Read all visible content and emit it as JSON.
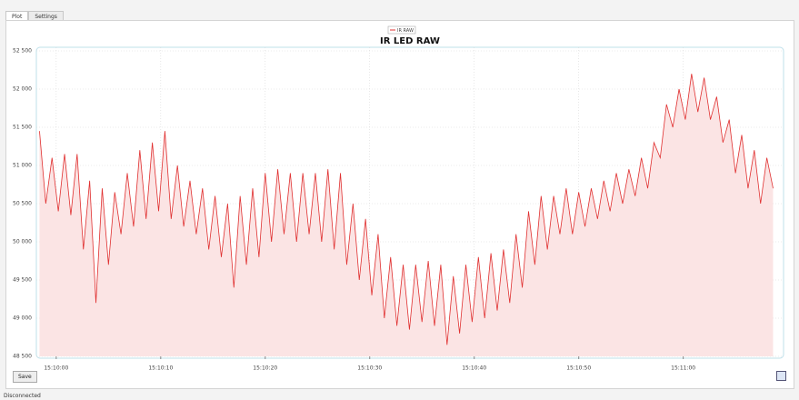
{
  "tabs": [
    "Plot",
    "Settings"
  ],
  "save_button": "Save",
  "status": "Disconnected",
  "chart_data": {
    "type": "line",
    "title": "IR LED RAW",
    "x": [
      "15:09:58.4",
      "15:09:59.0",
      "15:09:59.6",
      "15:10:00.2",
      "15:10:00.8",
      "15:10:01.4",
      "15:10:02.0",
      "15:10:02.6",
      "15:10:03.2",
      "15:10:03.8",
      "15:10:04.4",
      "15:10:05.0",
      "15:10:05.6",
      "15:10:06.2",
      "15:10:06.8",
      "15:10:07.4",
      "15:10:08.0",
      "15:10:08.6",
      "15:10:09.2",
      "15:10:09.8",
      "15:10:10.4",
      "15:10:11.0",
      "15:10:11.6",
      "15:10:12.2",
      "15:10:12.8",
      "15:10:13.4",
      "15:10:14.0",
      "15:10:14.6",
      "15:10:15.2",
      "15:10:15.8",
      "15:10:16.4",
      "15:10:17.0",
      "15:10:17.6",
      "15:10:18.2",
      "15:10:18.8",
      "15:10:19.4",
      "15:10:20.0",
      "15:10:20.6",
      "15:10:21.2",
      "15:10:21.8",
      "15:10:22.4",
      "15:10:23.0",
      "15:10:23.6",
      "15:10:24.2",
      "15:10:24.8",
      "15:10:25.4",
      "15:10:26.0",
      "15:10:26.6",
      "15:10:27.2",
      "15:10:27.8",
      "15:10:28.4",
      "15:10:29.0",
      "15:10:29.6",
      "15:10:30.2",
      "15:10:30.8",
      "15:10:31.4",
      "15:10:32.0",
      "15:10:32.6",
      "15:10:33.2",
      "15:10:33.8",
      "15:10:34.4",
      "15:10:35.0",
      "15:10:35.6",
      "15:10:36.2",
      "15:10:36.8",
      "15:10:37.4",
      "15:10:38.0",
      "15:10:38.6",
      "15:10:39.2",
      "15:10:39.8",
      "15:10:40.4",
      "15:10:41.0",
      "15:10:41.6",
      "15:10:42.2",
      "15:10:42.8",
      "15:10:43.4",
      "15:10:44.0",
      "15:10:44.6",
      "15:10:45.2",
      "15:10:45.8",
      "15:10:46.4",
      "15:10:47.0",
      "15:10:47.6",
      "15:10:48.2",
      "15:10:48.8",
      "15:10:49.4",
      "15:10:50.0",
      "15:10:50.6",
      "15:10:51.2",
      "15:10:51.8",
      "15:10:52.4",
      "15:10:53.0",
      "15:10:53.6",
      "15:10:54.2",
      "15:10:54.8",
      "15:10:55.4",
      "15:10:56.0",
      "15:10:56.6",
      "15:10:57.2",
      "15:10:57.8",
      "15:10:58.4",
      "15:10:59.0",
      "15:10:59.6",
      "15:11:00.2",
      "15:11:00.8",
      "15:11:01.4",
      "15:11:02.0",
      "15:11:02.6",
      "15:11:03.2",
      "15:11:03.8",
      "15:11:04.4",
      "15:11:05.0",
      "15:11:05.6",
      "15:11:06.2",
      "15:11:06.8",
      "15:11:07.4",
      "15:11:08.0",
      "15:11:08.6"
    ],
    "series": [
      {
        "name": "IR RAW",
        "color": "#e03030",
        "fill": "#fbe4e4",
        "values": [
          51450,
          50500,
          51100,
          50400,
          51150,
          50350,
          51150,
          49900,
          50800,
          49200,
          50700,
          49700,
          50650,
          50100,
          50900,
          50200,
          51200,
          50300,
          51300,
          50400,
          51450,
          50300,
          51000,
          50200,
          50800,
          50100,
          50700,
          49900,
          50600,
          49800,
          50500,
          49400,
          50600,
          49700,
          50700,
          49800,
          50900,
          50000,
          50950,
          50100,
          50900,
          50000,
          50900,
          50100,
          50900,
          50000,
          50950,
          49900,
          50900,
          49700,
          50500,
          49500,
          50300,
          49300,
          50100,
          49000,
          49800,
          48900,
          49700,
          48850,
          49700,
          48950,
          49750,
          48900,
          49700,
          48650,
          49550,
          48800,
          49700,
          48950,
          49800,
          49000,
          49850,
          49100,
          49900,
          49200,
          50100,
          49400,
          50400,
          49700,
          50600,
          49900,
          50600,
          50100,
          50700,
          50100,
          50650,
          50200,
          50700,
          50300,
          50800,
          50400,
          50900,
          50500,
          50950,
          50600,
          51100,
          50700,
          51300,
          51100,
          51800,
          51500,
          52000,
          51600,
          52200,
          51700,
          52150,
          51600,
          51900,
          51300,
          51600,
          50900,
          51400,
          50700,
          51200,
          50500,
          51100,
          50700
        ]
      }
    ],
    "xlim": [
      "15:09:58.1",
      "15:11:09.6"
    ],
    "xticks": [
      "15:10:00",
      "15:10:10",
      "15:10:20",
      "15:10:30",
      "15:10:40",
      "15:10:50",
      "15:11:00"
    ],
    "ylim": [
      48500,
      52500
    ],
    "yticks": [
      {
        "value": 48500,
        "label": "48 500"
      },
      {
        "value": 49000,
        "label": "49 000"
      },
      {
        "value": 49500,
        "label": "49 500"
      },
      {
        "value": 50000,
        "label": "50 000"
      },
      {
        "value": 50500,
        "label": "50 500"
      },
      {
        "value": 51000,
        "label": "51 000"
      },
      {
        "value": 51500,
        "label": "51 500"
      },
      {
        "value": 52000,
        "label": "52 000"
      },
      {
        "value": 52500,
        "label": "52 500"
      }
    ],
    "grid": true
  }
}
